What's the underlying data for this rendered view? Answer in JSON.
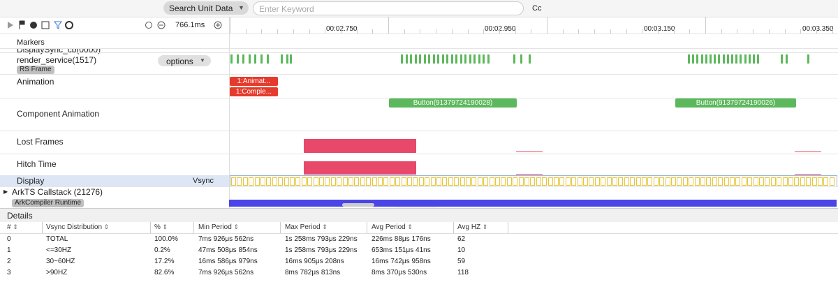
{
  "toolbar": {
    "search_scope": "Search Unit Data",
    "search_placeholder": "Enter Keyword",
    "case_toggle": "Cc"
  },
  "timeline": {
    "range": "766.1ms",
    "time_labels": [
      "00:02.750",
      "00:02.950",
      "00:03.150",
      "00:03.350"
    ]
  },
  "tracks": {
    "markers": "Markers",
    "display_sync": "DisplaySync_cb(0000)",
    "render_service": "render_service(1517)",
    "rs_frame": "RS Frame",
    "options": "options",
    "animation": "Animation",
    "animation_slices": [
      "1:Animat...",
      "1:Comple..."
    ],
    "component_animation": "Component Animation",
    "component_slices": [
      "Button(91379724190028)",
      "Button(91379724190026)"
    ],
    "lost_frames": "Lost Frames",
    "hitch_time": "Hitch Time",
    "display": "Display",
    "vsync": "Vsync",
    "arkts_callstack": "ArkTS Callstack (21276)",
    "ark_compiler": "ArkCompiler Runtime"
  },
  "details": {
    "title": "Details",
    "table": {
      "headers": [
        "#",
        "Vsync Distribution",
        "%",
        "Min Period",
        "Max Period",
        "Avg Period",
        "Avg HZ"
      ],
      "rows": [
        [
          "0",
          "TOTAL",
          "100.0%",
          "7ms 926μs 562ns",
          "1s 258ms 793μs 229ns",
          "226ms 88μs 176ns",
          "62"
        ],
        [
          "1",
          "<=30HZ",
          "0.2%",
          "47ms 508μs 854ns",
          "1s 258ms 793μs 229ns",
          "653ms 151μs 41ns",
          "10"
        ],
        [
          "2",
          "30~60HZ",
          "17.2%",
          "16ms 586μs 979ns",
          "16ms 905μs 208ns",
          "16ms 742μs 958ns",
          "59"
        ],
        [
          "3",
          ">90HZ",
          "82.6%",
          "7ms 926μs 562ns",
          "8ms 782μs 813ns",
          "8ms 370μs 530ns",
          "118"
        ]
      ]
    }
  }
}
